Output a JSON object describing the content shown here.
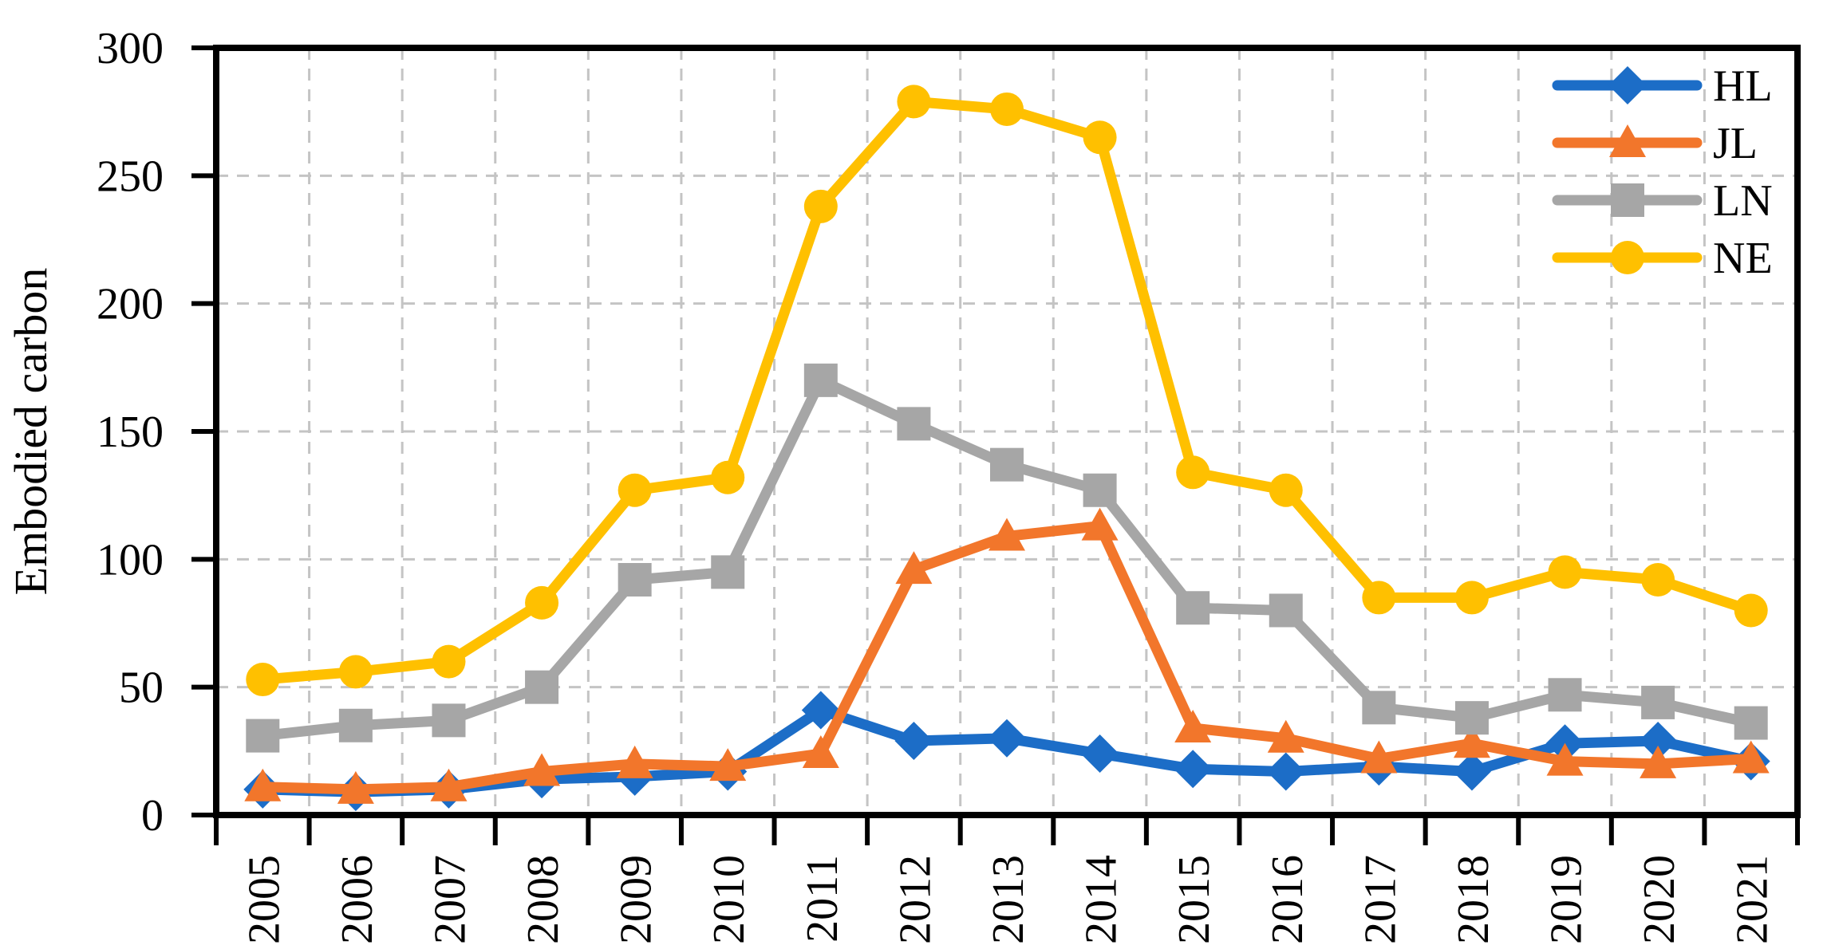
{
  "chart_data": {
    "type": "line",
    "title": "",
    "xlabel": "",
    "ylabel": "Embodied carbon",
    "ylim": [
      0,
      300
    ],
    "yticks": [
      0,
      50,
      100,
      150,
      200,
      250,
      300
    ],
    "grid": "dashed, horizontal at every 50 and vertical at category boundaries",
    "legend_position": "top-right inside plot",
    "categories": [
      "2005",
      "2006",
      "2007",
      "2008",
      "2009",
      "2010",
      "2011",
      "2012",
      "2013",
      "2014",
      "2015",
      "2016",
      "2017",
      "2018",
      "2019",
      "2020",
      "2021"
    ],
    "series": [
      {
        "name": "HL",
        "color": "#1C6DC7",
        "marker": "diamond",
        "values": [
          10,
          9,
          10,
          14,
          15,
          17,
          41,
          29,
          30,
          24,
          18,
          17,
          19,
          17,
          28,
          29,
          21
        ]
      },
      {
        "name": "JL",
        "color": "#F2762B",
        "marker": "triangle",
        "values": [
          11,
          10,
          11,
          17,
          20,
          19,
          24,
          96,
          109,
          113,
          34,
          30,
          22,
          28,
          21,
          20,
          22
        ]
      },
      {
        "name": "LN",
        "color": "#A6A6A6",
        "marker": "square",
        "values": [
          31,
          35,
          37,
          50,
          92,
          95,
          170,
          153,
          137,
          127,
          81,
          80,
          42,
          38,
          47,
          44,
          36
        ]
      },
      {
        "name": "NE",
        "color": "#FFC000",
        "marker": "circle",
        "values": [
          53,
          56,
          60,
          83,
          127,
          132,
          238,
          279,
          276,
          265,
          134,
          127,
          85,
          85,
          95,
          92,
          80
        ]
      }
    ]
  },
  "colors": {
    "axis": "#000000",
    "grid": "#C4C4C4",
    "background": "#FFFFFF"
  }
}
